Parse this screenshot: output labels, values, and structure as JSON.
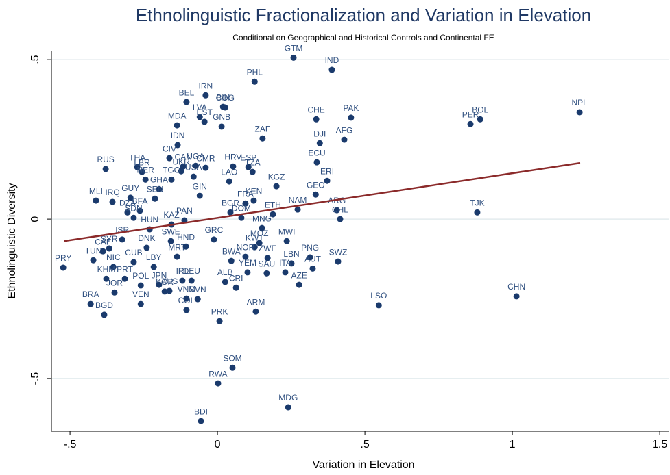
{
  "chart_data": {
    "type": "scatter",
    "title": "Ethnolinguistic Fractionalization and Variation in Elevation",
    "subtitle": "Conditional on Geographical and Historical Controls and Continental FE",
    "x_label": "Variation in Elevation",
    "y_label": "Ethnolinguistic Diversity",
    "color": "#1a3a6c",
    "label_color": "#2f4f7f",
    "grid": true,
    "xlim": [
      -0.563,
      1.53
    ],
    "ylim": [
      -0.665,
      0.526
    ],
    "xticks": [
      {
        "value": -0.5,
        "label": "-.5"
      },
      0,
      {
        "value": 0.5,
        "label": ".5"
      },
      1,
      1.5
    ],
    "yticks": [
      {
        "value": -0.5,
        "label": "-.5"
      },
      0,
      {
        "value": 0.5,
        "label": ".5"
      }
    ],
    "labels": [
      "GTM",
      "IND",
      "PHL",
      "NPL",
      "BOL",
      "PER",
      "PAK",
      "CHE",
      "DJI",
      "AFG",
      "ZAF",
      "ECU",
      "ERI",
      "GEO",
      "KGZ",
      "KEN",
      "NAM",
      "ARG",
      "CHL",
      "ETH",
      "TJK",
      "MWI",
      "PNG",
      "SWZ",
      "AUT",
      "LBN",
      "AZE",
      "ZWE",
      "KWT",
      "CHN",
      "LSO",
      "ARM",
      "PRK",
      "SOM",
      "RWA",
      "MDG",
      "BDI",
      "CRI",
      "ALB",
      "YEM",
      "BWA",
      "NOR",
      "SAU",
      "ITA",
      "PRY",
      "TUN",
      "CAF",
      "NIC",
      "CUB",
      "KHM",
      "PRT",
      "JOR",
      "BRA",
      "BGD",
      "VEN",
      "POL",
      "KOR",
      "JPN",
      "LBY",
      "DNK",
      "MRT",
      "HND",
      "IRL",
      "DEU",
      "AUS",
      "SVN",
      "COL",
      "VNM",
      "SWE",
      "RUS",
      "THA",
      "IDN",
      "MDA",
      "BEL",
      "IRN",
      "BIH",
      "CIV",
      "CAN",
      "MLI",
      "IRQ",
      "GUY",
      "DZA",
      "HUN",
      "LBR",
      "NER",
      "UKR",
      "TGO",
      "GHA",
      "SEN",
      "BFA",
      "SDN",
      "ISR",
      "SYR",
      "USA",
      "CMR",
      "GIN",
      "LAO",
      "HRV",
      "ESP",
      "TZA",
      "FRA",
      "DOM",
      "PAN",
      "KAZ",
      "GRC",
      "MOZ",
      "MNG",
      "UGA",
      "LVA",
      "EST",
      "GNB",
      "COG",
      "BGR"
    ],
    "x": [
      0.258,
      0.388,
      0.126,
      1.228,
      0.891,
      0.858,
      0.453,
      0.335,
      0.347,
      0.43,
      0.153,
      0.337,
      0.372,
      0.333,
      0.2,
      0.123,
      0.272,
      0.405,
      0.416,
      0.188,
      0.881,
      0.235,
      0.314,
      0.409,
      0.323,
      0.251,
      0.277,
      0.17,
      0.126,
      1.014,
      0.547,
      0.13,
      0.007,
      0.051,
      0.002,
      0.24,
      -0.056,
      0.063,
      0.026,
      0.102,
      0.047,
      0.095,
      0.167,
      0.23,
      -0.523,
      -0.421,
      -0.388,
      -0.353,
      -0.284,
      -0.377,
      -0.314,
      -0.349,
      -0.43,
      -0.384,
      -0.26,
      -0.26,
      -0.179,
      -0.198,
      -0.216,
      -0.24,
      -0.137,
      -0.107,
      -0.119,
      -0.088,
      -0.163,
      -0.067,
      -0.105,
      -0.105,
      -0.158,
      -0.379,
      -0.272,
      -0.135,
      -0.137,
      -0.105,
      -0.04,
      0.019,
      -0.163,
      -0.116,
      -0.412,
      -0.356,
      -0.295,
      -0.305,
      -0.23,
      -0.256,
      -0.244,
      -0.123,
      -0.156,
      -0.198,
      -0.212,
      -0.263,
      -0.284,
      -0.323,
      -0.367,
      -0.081,
      -0.04,
      -0.06,
      0.04,
      0.053,
      0.105,
      0.119,
      0.095,
      0.081,
      -0.112,
      -0.156,
      -0.012,
      0.142,
      0.151,
      -0.074,
      -0.06,
      -0.044,
      0.014,
      0.026,
      0.044
    ],
    "values": [
      0.506,
      0.468,
      0.431,
      0.335,
      0.313,
      0.298,
      0.318,
      0.313,
      0.238,
      0.249,
      0.253,
      0.178,
      0.12,
      0.077,
      0.103,
      0.058,
      0.03,
      0.028,
      0.0,
      0.015,
      0.021,
      -0.069,
      -0.12,
      -0.133,
      -0.155,
      -0.139,
      -0.206,
      -0.122,
      -0.088,
      -0.242,
      -0.27,
      -0.29,
      -0.32,
      -0.466,
      -0.515,
      -0.59,
      -0.633,
      -0.215,
      -0.197,
      -0.167,
      -0.131,
      -0.118,
      -0.17,
      -0.167,
      -0.152,
      -0.129,
      -0.101,
      -0.15,
      -0.135,
      -0.187,
      -0.187,
      -0.23,
      -0.266,
      -0.3,
      -0.266,
      -0.208,
      -0.227,
      -0.206,
      -0.15,
      -0.09,
      -0.118,
      -0.086,
      -0.193,
      -0.193,
      -0.225,
      -0.251,
      -0.285,
      -0.249,
      -0.069,
      0.157,
      0.163,
      0.232,
      0.294,
      0.367,
      0.388,
      0.352,
      0.191,
      0.165,
      0.058,
      0.054,
      0.067,
      0.021,
      -0.032,
      0.148,
      0.124,
      0.15,
      0.124,
      0.094,
      0.064,
      0.026,
      0.004,
      -0.064,
      -0.092,
      0.133,
      0.161,
      0.073,
      0.118,
      0.165,
      0.163,
      0.148,
      0.049,
      0.004,
      -0.004,
      -0.017,
      -0.064,
      -0.075,
      -0.028,
      0.167,
      0.32,
      0.305,
      0.29,
      0.35,
      0.021
    ],
    "fit_line": {
      "color": "#8b2a2a",
      "x": [
        -0.52,
        1.23
      ],
      "values": [
        -0.069,
        0.176
      ]
    }
  }
}
